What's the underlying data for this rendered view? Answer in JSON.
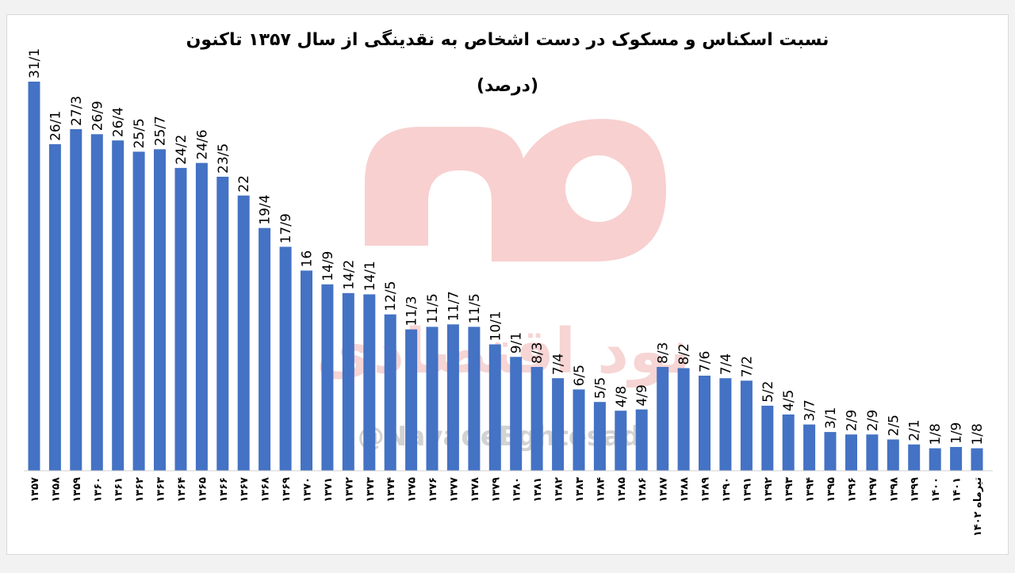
{
  "chart_data": {
    "type": "bar",
    "title": "نسبت اسکناس و مسکوک در دست اشخاص به نقدینگی از سال ۱۳۵۷ تاکنون",
    "subtitle": "(درصد)",
    "bar_color": "#4472c4",
    "categories": [
      "۱۳۵۷",
      "۱۳۵۸",
      "۱۳۵۹",
      "۱۳۶۰",
      "۱۳۶۱",
      "۱۳۶۲",
      "۱۳۶۳",
      "۱۳۶۴",
      "۱۳۶۵",
      "۱۳۶۶",
      "۱۳۶۷",
      "۱۳۶۸",
      "۱۳۶۹",
      "۱۳۷۰",
      "۱۳۷۱",
      "۱۳۷۲",
      "۱۳۷۳",
      "۱۳۷۴",
      "۱۳۷۵",
      "۱۳۷۶",
      "۱۳۷۷",
      "۱۳۷۸",
      "۱۳۷۹",
      "۱۳۸۰",
      "۱۳۸۱",
      "۱۳۸۲",
      "۱۳۸۳",
      "۱۳۸۴",
      "۱۳۸۵",
      "۱۳۸۶",
      "۱۳۸۷",
      "۱۳۸۸",
      "۱۳۸۹",
      "۱۳۹۰",
      "۱۳۹۱",
      "۱۳۹۲",
      "۱۳۹۳",
      "۱۳۹۴",
      "۱۳۹۵",
      "۱۳۹۶",
      "۱۳۹۷",
      "۱۳۹۸",
      "۱۳۹۹",
      "۱۴۰۰",
      "۱۴۰۱",
      "تیرماه ۱۴۰۲"
    ],
    "values": [
      31.1,
      26.1,
      27.3,
      26.9,
      26.4,
      25.5,
      25.7,
      24.2,
      24.6,
      23.5,
      22,
      19.4,
      17.9,
      16,
      14.9,
      14.2,
      14.1,
      12.5,
      11.3,
      11.5,
      11.7,
      11.5,
      10.1,
      9.1,
      8.3,
      7.4,
      6.5,
      5.5,
      4.8,
      4.9,
      8.3,
      8.2,
      7.6,
      7.4,
      7.2,
      5.2,
      4.5,
      3.7,
      3.1,
      2.9,
      2.9,
      2.5,
      2.1,
      1.8,
      1.9,
      1.8
    ],
    "data_labels": [
      "31/1",
      "26/1",
      "27/3",
      "26/9",
      "26/4",
      "25/5",
      "25/7",
      "24/2",
      "24/6",
      "23/5",
      "22",
      "19/4",
      "17/9",
      "16",
      "14/9",
      "14/2",
      "14/1",
      "12/5",
      "11/3",
      "11/5",
      "11/7",
      "11/5",
      "10/1",
      "9/1",
      "8/3",
      "7/4",
      "6/5",
      "5/5",
      "4/8",
      "4/9",
      "8/3",
      "8/2",
      "7/6",
      "7/4",
      "7/2",
      "5/2",
      "4/5",
      "3/7",
      "3/1",
      "2/9",
      "2/9",
      "2/5",
      "2/1",
      "1/8",
      "1/9",
      "1/8"
    ],
    "xlabel": "",
    "ylabel": "",
    "ylim": [
      0,
      31.1
    ],
    "grid": false,
    "legend": "none"
  },
  "watermark": {
    "logo_icon": "navad-eghtesadi-logo",
    "logo_text": "نود اقتصادی",
    "handle": "@NavadeEghtesadi",
    "color": "#f3c4c3"
  }
}
